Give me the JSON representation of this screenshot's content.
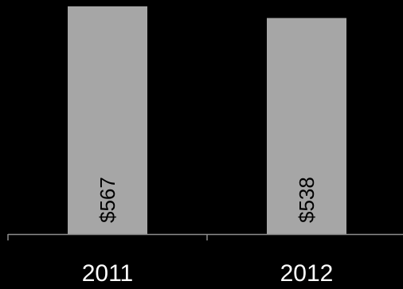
{
  "chart_data": {
    "type": "bar",
    "categories": [
      "2011",
      "2012"
    ],
    "values": [
      567,
      538
    ],
    "data_labels": [
      "$567",
      "$538"
    ],
    "title": "",
    "xlabel": "",
    "ylabel": "",
    "ylim": [
      0,
      567
    ],
    "grid": false,
    "legend": "none",
    "colors": {
      "background": "#000000",
      "bar": "#a6a6a6",
      "axis": "#8c8c8c",
      "tick_label": "#ffffff",
      "data_label": "#000000"
    }
  }
}
